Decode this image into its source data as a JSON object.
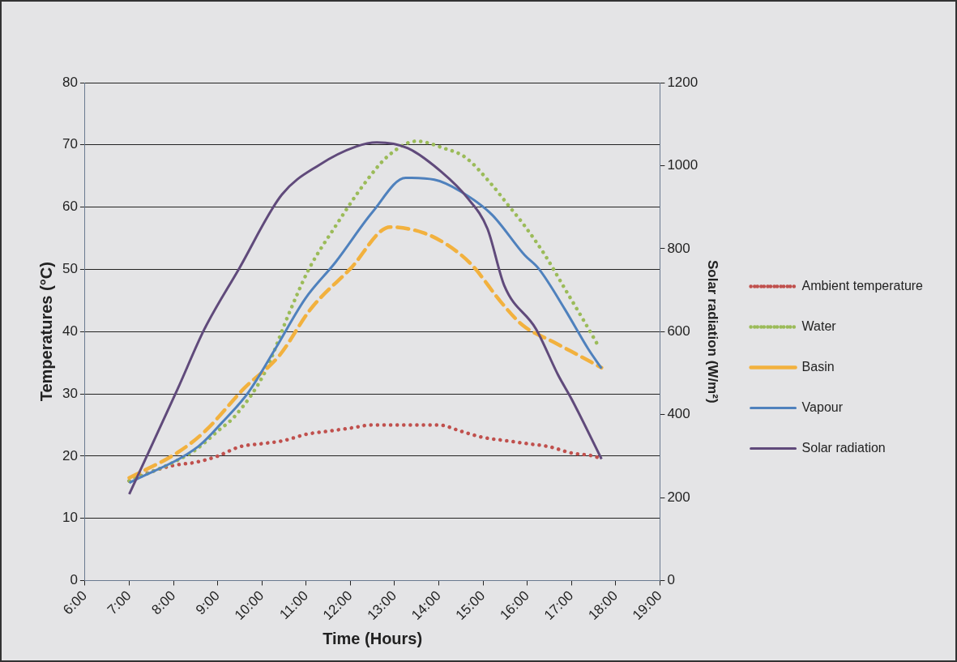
{
  "chart_data": {
    "type": "line",
    "xlabel": "Time (Hours)",
    "ylabel": "Temperatures (°C)",
    "y2label": "Solar radiation (W/m²)",
    "xlim": [
      6,
      19
    ],
    "xticks": [
      {
        "value": 6,
        "label": "6:00"
      },
      {
        "value": 7,
        "label": "7:00"
      },
      {
        "value": 8,
        "label": "8:00"
      },
      {
        "value": 9,
        "label": "9:00"
      },
      {
        "value": 10,
        "label": "10:00"
      },
      {
        "value": 11,
        "label": "11:00"
      },
      {
        "value": 12,
        "label": "12:00"
      },
      {
        "value": 13,
        "label": "13:00"
      },
      {
        "value": 14,
        "label": "14:00"
      },
      {
        "value": 15,
        "label": "15:00"
      },
      {
        "value": 16,
        "label": "16:00"
      },
      {
        "value": 17,
        "label": "17:00"
      },
      {
        "value": 18,
        "label": "18:00"
      },
      {
        "value": 19,
        "label": "19:00"
      }
    ],
    "ylim": [
      0,
      80
    ],
    "yticks": [
      0,
      10,
      20,
      30,
      40,
      50,
      60,
      70,
      80
    ],
    "y2lim": [
      0,
      1200
    ],
    "y2ticks": [
      0,
      200,
      400,
      600,
      800,
      1000,
      1200
    ],
    "grid": "y",
    "legend": "right",
    "marker": "none",
    "series": [
      {
        "name": "Ambient temperature",
        "color": "#c0504d",
        "line_style": "dotted",
        "x": [
          7,
          7.5,
          8,
          8.5,
          9,
          9.5,
          10,
          10.5,
          11,
          11.5,
          12,
          12.5,
          13,
          13.5,
          14,
          14.5,
          15,
          15.5,
          16,
          16.5,
          17,
          17.5,
          17.7
        ],
        "values": [
          16,
          17.5,
          18.5,
          19,
          20,
          21.5,
          22,
          22.5,
          23.5,
          24,
          24.5,
          25,
          25,
          25,
          25,
          24,
          23,
          22.5,
          22,
          21.5,
          20.5,
          20,
          19.5
        ]
      },
      {
        "name": "Water",
        "color": "#9bbb59",
        "line_style": "dotted",
        "x": [
          7,
          8,
          8.5,
          9,
          9.4,
          10.07,
          10.6,
          11.06,
          11.67,
          12.3,
          12.85,
          13.5,
          14.1,
          14.6,
          15.2,
          15.56,
          15.94,
          16.4,
          16.85,
          17.3,
          17.6
        ],
        "values": [
          16,
          19,
          21,
          24,
          26.5,
          33.5,
          42.7,
          50,
          57,
          63.6,
          68.2,
          70.6,
          69.5,
          68,
          63.6,
          60.4,
          57,
          52.3,
          46.9,
          41.5,
          37.8
        ]
      },
      {
        "name": "Basin",
        "color": "#f2b13e",
        "line_style": "dashed",
        "x": [
          7,
          8.1,
          8.7,
          9.6,
          10.4,
          11.1,
          12,
          12.9,
          13.64,
          14.2,
          14.75,
          15.4,
          15.9,
          16.6,
          17,
          17.68
        ],
        "values": [
          16.5,
          20.6,
          23.9,
          30.9,
          36.2,
          43.6,
          50.1,
          56.8,
          55.9,
          53.9,
          50.7,
          44.8,
          41,
          38.3,
          36.8,
          34.2
        ]
      },
      {
        "name": "Vapour",
        "color": "#4f81bd",
        "line_style": "solid",
        "x": [
          7,
          8.57,
          9.1,
          9.7,
          10.3,
          10.98,
          11.67,
          12.5,
          13.25,
          13.9,
          14.5,
          15.2,
          15.94,
          16.26,
          16.85,
          17.38,
          17.68
        ],
        "values": [
          15.7,
          21.6,
          25.4,
          30.3,
          37.2,
          45.3,
          51.2,
          59.2,
          64.7,
          64.4,
          62.5,
          58.8,
          52.3,
          50.1,
          43.6,
          37.2,
          34.1
        ]
      },
      {
        "name": "Solar radiation",
        "color": "#604a7b",
        "line_style": "solid",
        "axis": "y2",
        "x": [
          7,
          8.1,
          8.7,
          9.48,
          10.45,
          11.3,
          12.13,
          12.6,
          13.3,
          14.06,
          14.65,
          15.1,
          15.48,
          16.2,
          16.7,
          17,
          17.68
        ],
        "values": [
          208,
          463,
          606,
          751,
          930,
          1002,
          1046,
          1056,
          1042,
          985,
          922,
          848,
          711,
          606,
          495,
          438,
          293
        ]
      }
    ]
  }
}
